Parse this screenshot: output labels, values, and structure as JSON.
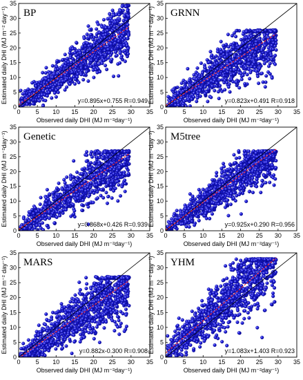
{
  "figure": {
    "shared": {
      "xlabel": "Observed daily DHI (MJ m⁻²day⁻¹)",
      "ylabel": "Estimated daily DHI (MJ m⁻² day⁻¹)"
    }
  },
  "colors": {
    "points": "#1f1fe0",
    "point_edge": "#0a0a90",
    "fit_line": "#ff3030",
    "one_to_one": "#000000"
  },
  "chart_data": [
    {
      "type": "scatter",
      "title": "BP",
      "xlabel": "Observed daily DHI (MJ m⁻²day⁻¹)",
      "ylabel": "Estimated daily DHI (MJ m⁻² day⁻¹)",
      "xlim": [
        0,
        35
      ],
      "ylim": [
        0,
        35
      ],
      "xticks": [
        0,
        5,
        10,
        15,
        20,
        25,
        30,
        35
      ],
      "yticks": [
        0,
        5,
        10,
        15,
        20,
        25,
        30,
        35
      ],
      "fit": {
        "slope": 0.895,
        "intercept": 0.755,
        "R": 0.949
      },
      "annotation": "y=0.895x+0.755  R=0.949",
      "spread": 2.6,
      "xmax": 29.5,
      "ycap": 34.5
    },
    {
      "type": "scatter",
      "title": "GRNN",
      "xlabel": "Observed daily DHI (MJ m⁻²day⁻¹)",
      "ylabel": "Estimated daily DHI (MJ m⁻² day⁻¹)",
      "xlim": [
        0,
        35
      ],
      "ylim": [
        0,
        35
      ],
      "xticks": [
        0,
        5,
        10,
        15,
        20,
        25,
        30,
        35
      ],
      "yticks": [
        0,
        5,
        10,
        15,
        20,
        25,
        30,
        35
      ],
      "fit": {
        "slope": 0.823,
        "intercept": 0.491,
        "R": 0.918
      },
      "annotation": "y=0.823x+0.491  R=0.918",
      "spread": 3.1,
      "xmax": 29.5,
      "ycap": 26
    },
    {
      "type": "scatter",
      "title": "Genetic",
      "xlabel": "Observed daily DHI (MJ m⁻²day⁻¹)",
      "ylabel": "Estimated daily DHI (MJ m⁻²day⁻¹)",
      "xlim": [
        0,
        35
      ],
      "ylim": [
        0,
        35
      ],
      "xticks": [
        0,
        5,
        10,
        15,
        20,
        25,
        30,
        35
      ],
      "yticks": [
        0,
        5,
        10,
        15,
        20,
        25,
        30,
        35
      ],
      "fit": {
        "slope": 0.868,
        "intercept": 0.426,
        "R": 0.939
      },
      "annotation": "y=0.868x+0.426  R=0.939",
      "spread": 2.9,
      "xmax": 29.5,
      "ycap": 27
    },
    {
      "type": "scatter",
      "title": "M5tree",
      "xlabel": "Observed daily DHI (MJ m⁻²day⁻¹)",
      "ylabel": "Estimated daily DHI (MJ m⁻²day⁻¹)",
      "xlim": [
        0,
        35
      ],
      "ylim": [
        0,
        35
      ],
      "xticks": [
        0,
        5,
        10,
        15,
        20,
        25,
        30,
        35
      ],
      "yticks": [
        0,
        5,
        10,
        15,
        20,
        25,
        30,
        35
      ],
      "fit": {
        "slope": 0.925,
        "intercept": 0.29,
        "R": 0.956
      },
      "annotation": "y=0.925x+0.290  R=0.956",
      "spread": 2.5,
      "xmax": 29.5,
      "ycap": 27
    },
    {
      "type": "scatter",
      "title": "MARS",
      "xlabel": "Observed daily DHI (MJ m⁻²day⁻¹)",
      "ylabel": "Estimated daily DHI (MJ m⁻² day⁻¹)",
      "xlim": [
        0,
        35
      ],
      "ylim": [
        0,
        35
      ],
      "xticks": [
        0,
        5,
        10,
        15,
        20,
        25,
        30,
        35
      ],
      "yticks": [
        0,
        5,
        10,
        15,
        20,
        25,
        30,
        35
      ],
      "fit": {
        "slope": 0.882,
        "intercept": -0.3,
        "R": 0.908
      },
      "annotation": "y=0.882x-0.300  R=0.908",
      "spread": 3.2,
      "xmax": 29.5,
      "ycap": 27
    },
    {
      "type": "scatter",
      "title": "YHM",
      "xlabel": "Observed daily DHI (MJ m⁻²day⁻¹)",
      "ylabel": "Estimated daily DHI (MJ m⁻² day⁻¹)",
      "xlim": [
        0,
        35
      ],
      "ylim": [
        0,
        35
      ],
      "xticks": [
        0,
        5,
        10,
        15,
        20,
        25,
        30,
        35
      ],
      "yticks": [
        0,
        5,
        10,
        15,
        20,
        25,
        30,
        35
      ],
      "fit": {
        "slope": 1.083,
        "intercept": 1.403,
        "R": 0.923
      },
      "annotation": "y=1.083x+1.403  R=0.923",
      "spread": 3.6,
      "xmax": 29.5,
      "ycap": 33
    }
  ]
}
